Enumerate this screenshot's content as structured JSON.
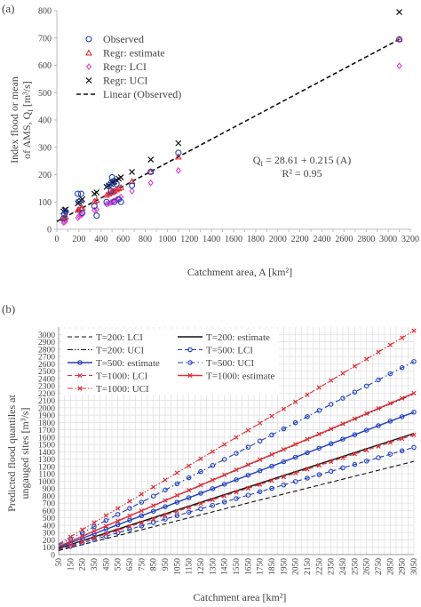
{
  "chart_data": [
    {
      "panel_label": "(a)",
      "type": "scatter",
      "ylabel_lines": [
        "Index flood or mean",
        "of AMS, Q",
        "[m³/s]"
      ],
      "ylabel_sub": "I",
      "xlabel": "Catchment area, A [km²]",
      "xlim": [
        0,
        3200
      ],
      "ylim": [
        0,
        800
      ],
      "xticks": [
        0,
        100,
        200,
        300,
        400,
        500,
        600,
        700,
        800,
        900,
        1000,
        1100,
        1200,
        1300,
        1400,
        1500,
        1600,
        1700,
        1800,
        1900,
        2000,
        2100,
        2200,
        2300,
        2400,
        2500,
        2600,
        2700,
        2800,
        2900,
        3000,
        3100,
        3200
      ],
      "xtick_labels": [
        "0",
        "200",
        "400",
        "600",
        "800",
        "1000",
        "1200",
        "1400",
        "1600",
        "1800",
        "2000",
        "2200",
        "2400",
        "2600",
        "2800",
        "3000",
        "3200"
      ],
      "yticks": [
        0,
        100,
        200,
        300,
        400,
        500,
        600,
        700,
        800
      ],
      "grid": false,
      "legend_position": "top-left",
      "legend": [
        {
          "label": "Observed",
          "marker": "circle",
          "color": "#1f3fbf"
        },
        {
          "label": "Regr: estimate",
          "marker": "triangle",
          "color": "#e0303a"
        },
        {
          "label": "Regr: LCI",
          "marker": "diamond",
          "color": "#e040c8"
        },
        {
          "label": "Regr: UCI",
          "marker": "x",
          "color": "#111111"
        },
        {
          "label": "Linear (Observed)",
          "marker": "dashed-line",
          "color": "#111111"
        }
      ],
      "equation": "Q_I = 28.61 + 0.215 (A)",
      "r2": "R² = 0.95",
      "equation_parts": {
        "lhs": "Q",
        "lhs_sub": "I",
        "rhs": " = 28.61 + 0.215 (A)"
      },
      "fit": {
        "intercept": 28.61,
        "slope": 0.215
      },
      "series": [
        {
          "name": "Observed",
          "marker": "circle",
          "color": "#1f3fbf",
          "x": [
            60,
            70,
            80,
            190,
            200,
            220,
            230,
            340,
            360,
            450,
            470,
            490,
            500,
            510,
            520,
            540,
            560,
            580,
            680,
            850,
            1100,
            3100
          ],
          "y": [
            40,
            55,
            65,
            130,
            100,
            130,
            60,
            85,
            50,
            100,
            160,
            140,
            190,
            175,
            100,
            165,
            110,
            100,
            160,
            210,
            280,
            695
          ]
        },
        {
          "name": "Regr: estimate",
          "marker": "triangle",
          "color": "#e0303a",
          "x": [
            60,
            70,
            80,
            190,
            200,
            220,
            230,
            340,
            360,
            450,
            470,
            490,
            500,
            510,
            520,
            540,
            560,
            580,
            680,
            850,
            1100,
            3100
          ],
          "y": [
            40,
            43,
            46,
            70,
            72,
            76,
            78,
            102,
            106,
            125,
            130,
            134,
            136,
            138,
            140,
            145,
            149,
            153,
            175,
            211,
            265,
            695
          ]
        },
        {
          "name": "Regr: LCI",
          "marker": "diamond",
          "color": "#e040c8",
          "x": [
            60,
            70,
            80,
            190,
            200,
            220,
            230,
            340,
            360,
            450,
            470,
            490,
            500,
            510,
            520,
            540,
            560,
            580,
            680,
            850,
            1100,
            3100
          ],
          "y": [
            25,
            27,
            30,
            42,
            48,
            52,
            55,
            70,
            72,
            92,
            95,
            98,
            100,
            102,
            104,
            108,
            110,
            118,
            140,
            170,
            215,
            598
          ]
        },
        {
          "name": "Regr: UCI",
          "marker": "x",
          "color": "#111111",
          "x": [
            60,
            70,
            80,
            190,
            200,
            220,
            230,
            340,
            360,
            450,
            470,
            490,
            500,
            510,
            520,
            540,
            560,
            580,
            680,
            850,
            1100,
            3100
          ],
          "y": [
            65,
            70,
            72,
            95,
            100,
            105,
            110,
            130,
            135,
            155,
            160,
            165,
            170,
            172,
            175,
            180,
            185,
            190,
            210,
            255,
            315,
            795
          ]
        }
      ]
    },
    {
      "panel_label": "(b)",
      "type": "line",
      "ylabel_lines": [
        "Predicted flood quantiles at",
        "ungauged sites [m³/s]"
      ],
      "xlabel": "Catchment area [km²]",
      "xlim": [
        50,
        3050
      ],
      "ylim": [
        0,
        3100
      ],
      "x": [
        50,
        3050
      ],
      "xtick_labels": [
        "50",
        "150",
        "250",
        "350",
        "450",
        "550",
        "650",
        "750",
        "850",
        "950",
        "1050",
        "1150",
        "1250",
        "1350",
        "1450",
        "1550",
        "1650",
        "1750",
        "1850",
        "1950",
        "2050",
        "2150",
        "2250",
        "2350",
        "2450",
        "2550",
        "2650",
        "2750",
        "2850",
        "2950",
        "3050"
      ],
      "yticks": [
        0,
        100,
        200,
        300,
        400,
        500,
        600,
        700,
        800,
        900,
        1000,
        1100,
        1200,
        1300,
        1400,
        1500,
        1600,
        1700,
        1800,
        1900,
        2000,
        2100,
        2200,
        2300,
        2400,
        2500,
        2600,
        2700,
        2800,
        2900,
        3000
      ],
      "grid": true,
      "legend_position": "top-left",
      "series": [
        {
          "name": "T=200: LCI",
          "style": "dashed",
          "marker": "none",
          "color": "#111111",
          "y": [
            55,
            1270
          ]
        },
        {
          "name": "T=200: estimate",
          "style": "solid",
          "marker": "none",
          "color": "#111111",
          "y": [
            85,
            1650
          ]
        },
        {
          "name": "T=200: UCI",
          "style": "dashdotdot",
          "marker": "none",
          "color": "#111111",
          "y": [
            110,
            2190
          ]
        },
        {
          "name": "T=500: LCI",
          "style": "dashed",
          "marker": "circle",
          "color": "#1f3fbf",
          "y": [
            65,
            1460
          ]
        },
        {
          "name": "T=500: estimate",
          "style": "solid",
          "marker": "circle",
          "color": "#1f3fbf",
          "y": [
            100,
            1940
          ]
        },
        {
          "name": "T=500: UCI",
          "style": "dashdot",
          "marker": "circle",
          "color": "#1f3fbf",
          "y": [
            130,
            2630
          ]
        },
        {
          "name": "T=1000: LCI",
          "style": "dashed",
          "marker": "x",
          "color": "#e0303a",
          "y": [
            70,
            1630
          ]
        },
        {
          "name": "T=1000: estimate",
          "style": "solid",
          "marker": "x",
          "color": "#e0303a",
          "y": [
            110,
            2200
          ]
        },
        {
          "name": "T=1000: UCI",
          "style": "dashdotdot",
          "marker": "x",
          "color": "#e0303a",
          "y": [
            145,
            3050
          ]
        }
      ]
    }
  ]
}
